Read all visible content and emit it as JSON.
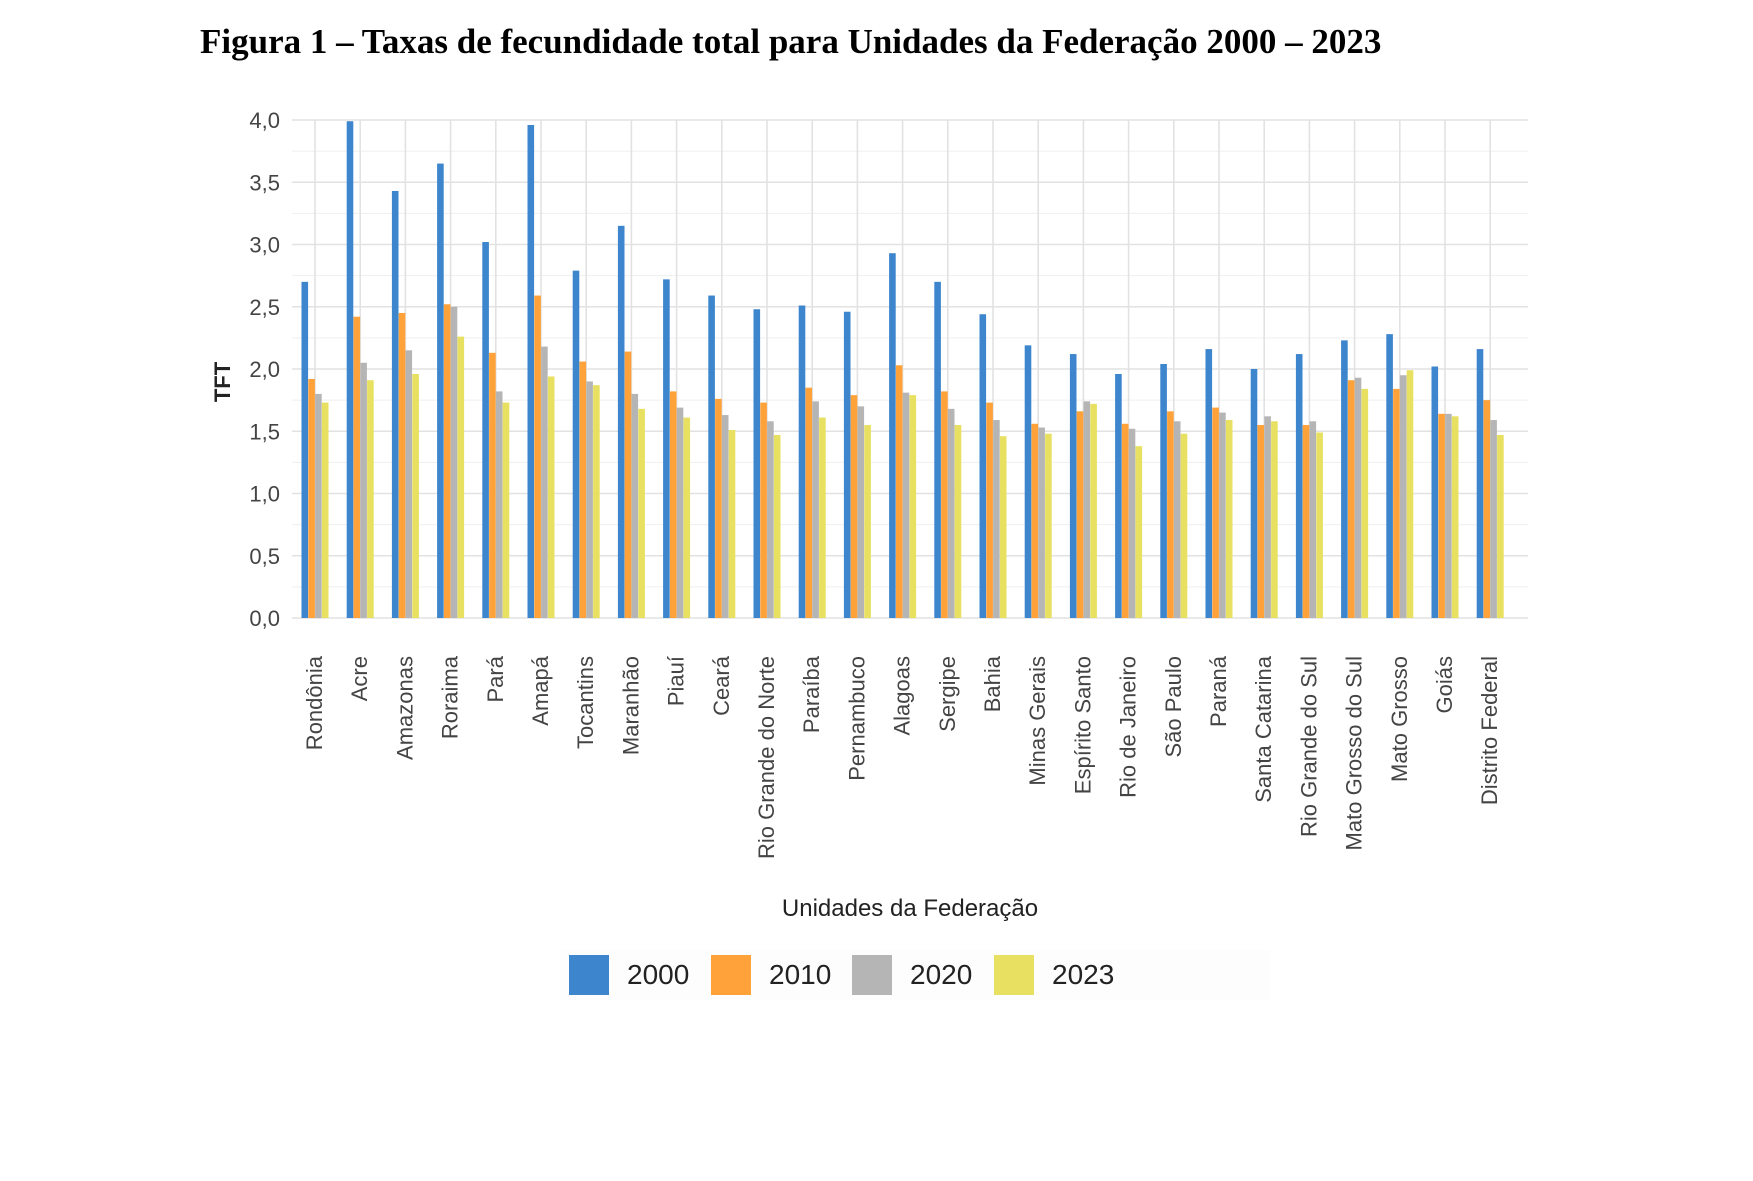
{
  "figure_title": "Figura 1 – Taxas de fecundidade total para Unidades da Federação 2000 – 2023",
  "chart_data": {
    "type": "bar",
    "xlabel": "Unidades da Federação",
    "ylabel": "TFT",
    "ylim": [
      0,
      4.0
    ],
    "yticks": [
      "0,0",
      "0,5",
      "1,0",
      "1,5",
      "2,0",
      "2,5",
      "3,0",
      "3,5",
      "4,0"
    ],
    "grid": true,
    "legend_position": "bottom",
    "categories": [
      "Rondônia",
      "Acre",
      "Amazonas",
      "Roraima",
      "Pará",
      "Amapá",
      "Tocantins",
      "Maranhão",
      "Piauí",
      "Ceará",
      "Rio Grande do Norte",
      "Paraíba",
      "Pernambuco",
      "Alagoas",
      "Sergipe",
      "Bahia",
      "Minas Gerais",
      "Espírito Santo",
      "Rio de Janeiro",
      "São Paulo",
      "Paraná",
      "Santa Catarina",
      "Rio Grande do Sul",
      "Mato Grosso do Sul",
      "Mato Grosso",
      "Goiás",
      "Distrito Federal"
    ],
    "series": [
      {
        "name": "2000",
        "color": "#3d85cc",
        "values": [
          2.7,
          3.99,
          3.43,
          3.65,
          3.02,
          3.96,
          2.79,
          3.15,
          2.72,
          2.59,
          2.48,
          2.51,
          2.46,
          2.93,
          2.7,
          2.44,
          2.19,
          2.12,
          1.96,
          2.04,
          2.16,
          2.0,
          2.12,
          2.23,
          2.28,
          2.02,
          2.16
        ]
      },
      {
        "name": "2010",
        "color": "#ffa23a",
        "values": [
          1.92,
          2.42,
          2.45,
          2.52,
          2.13,
          2.59,
          2.06,
          2.14,
          1.82,
          1.76,
          1.73,
          1.85,
          1.79,
          2.03,
          1.82,
          1.73,
          1.56,
          1.66,
          1.56,
          1.66,
          1.69,
          1.55,
          1.55,
          1.91,
          1.84,
          1.64,
          1.75
        ]
      },
      {
        "name": "2020",
        "color": "#b5b5b5",
        "values": [
          1.8,
          2.05,
          2.15,
          2.5,
          1.82,
          2.18,
          1.9,
          1.8,
          1.69,
          1.63,
          1.58,
          1.74,
          1.7,
          1.81,
          1.68,
          1.59,
          1.53,
          1.74,
          1.52,
          1.58,
          1.65,
          1.62,
          1.58,
          1.93,
          1.95,
          1.64,
          1.59
        ]
      },
      {
        "name": "2023",
        "color": "#e8e060",
        "values": [
          1.73,
          1.91,
          1.96,
          2.26,
          1.73,
          1.94,
          1.87,
          1.68,
          1.61,
          1.51,
          1.47,
          1.61,
          1.55,
          1.79,
          1.55,
          1.46,
          1.48,
          1.72,
          1.38,
          1.48,
          1.59,
          1.58,
          1.49,
          1.84,
          1.99,
          1.62,
          1.47
        ]
      }
    ]
  }
}
